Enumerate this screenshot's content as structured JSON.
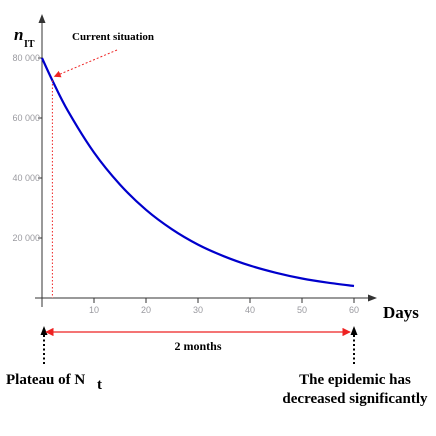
{
  "chart_data": {
    "type": "line",
    "ylabel_main": "n",
    "ylabel_sub": "IT",
    "xlabel": "Days",
    "xlim": [
      0,
      60
    ],
    "ylim": [
      0,
      90000
    ],
    "xticks": [
      10,
      20,
      30,
      40,
      50,
      60
    ],
    "yticks": [
      20000,
      40000,
      60000,
      80000
    ],
    "ytick_labels": [
      "20 000",
      "40 000",
      "60 000",
      "80 000"
    ],
    "grid": false,
    "series": [
      {
        "color": "#0000cc",
        "x": [
          0,
          2,
          5,
          10,
          15,
          20,
          25,
          30,
          35,
          40,
          45,
          50,
          55,
          60
        ],
        "y": [
          80000,
          72500,
          62300,
          48500,
          37800,
          29400,
          22900,
          17800,
          13900,
          10800,
          8400,
          6500,
          5100,
          4000
        ]
      }
    ],
    "annotations": {
      "current_situation_label": "Current situation",
      "current_situation_x": 2,
      "duration_label": "2 months",
      "duration_from_x": 0,
      "duration_to_x": 60,
      "left_label_main": "Plateau of N",
      "left_label_sub": "t",
      "right_label_line1": "The epidemic has",
      "right_label_line2": "decreased significantly",
      "highlight_color": "#ee2222"
    }
  }
}
